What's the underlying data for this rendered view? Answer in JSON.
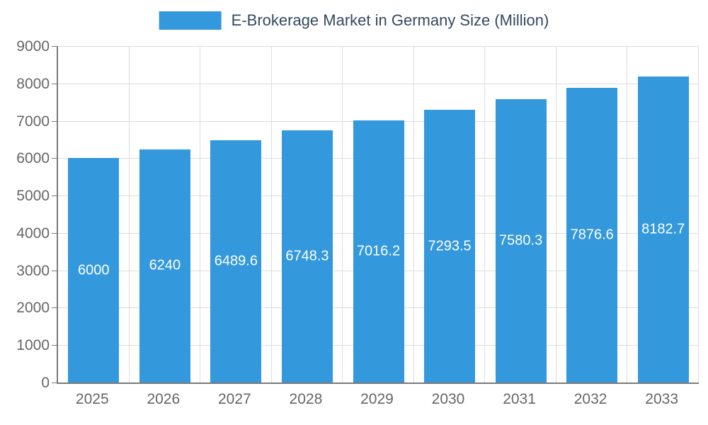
{
  "chart_data": {
    "type": "bar",
    "title": "E-Brokerage Market in Germany Size (Million)",
    "categories": [
      "2025",
      "2026",
      "2027",
      "2028",
      "2029",
      "2030",
      "2031",
      "2032",
      "2033"
    ],
    "values": [
      6000,
      6240,
      6489.6,
      6748.3,
      7016.2,
      7293.5,
      7580.3,
      7876.6,
      8182.7
    ],
    "value_labels": [
      "6000",
      "6240",
      "6489.6",
      "6748.3",
      "7016.2",
      "7293.5",
      "7580.3",
      "7876.6",
      "8182.7"
    ],
    "xlabel": "",
    "ylabel": "",
    "ylim": [
      0,
      9000
    ],
    "ytick_interval": 1000,
    "grid": true,
    "legend_position": "top",
    "colors": {
      "bar": "#3398DC",
      "bar_label_text": "#FFFFFF",
      "axis_text": "#666666",
      "legend_text": "#34495E",
      "grid_line": "#DDDDDD",
      "axis_line": "#7A7A7A"
    }
  }
}
